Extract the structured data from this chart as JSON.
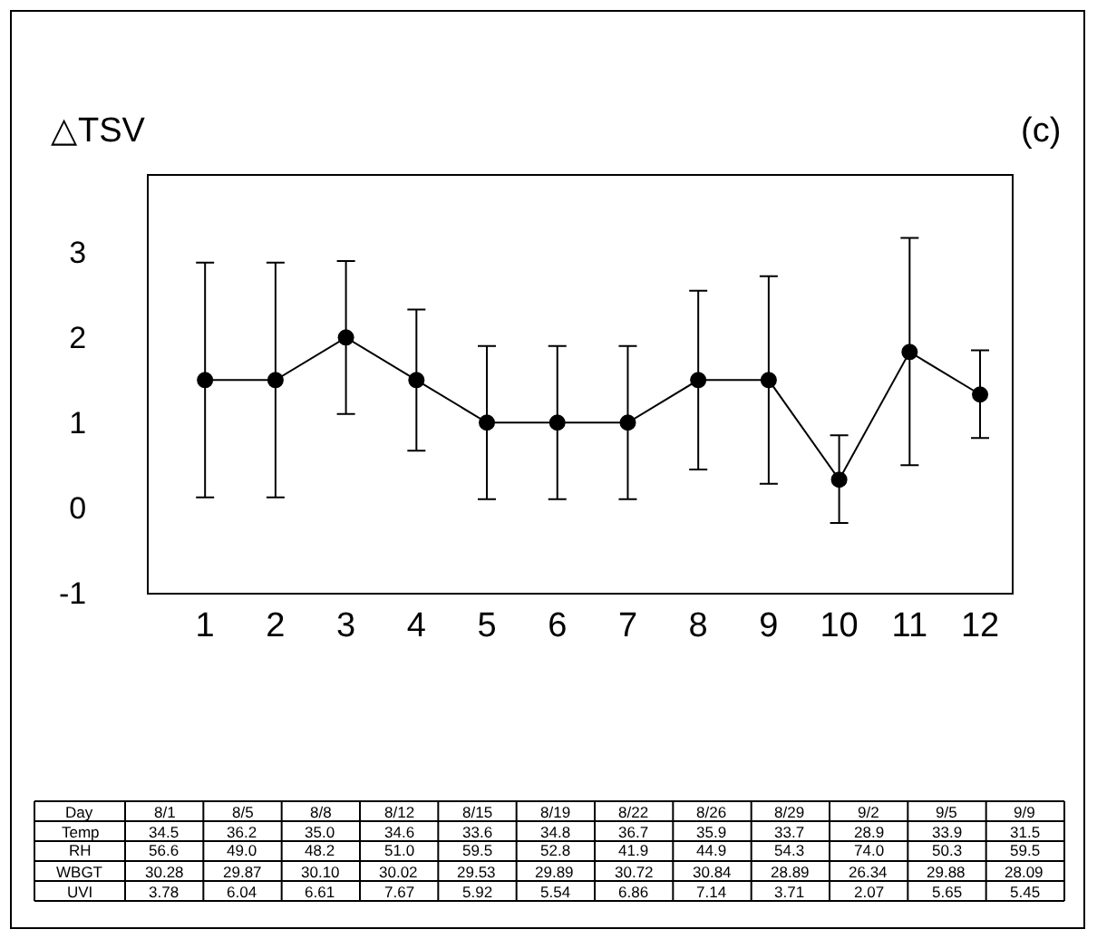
{
  "chart_data": {
    "type": "line",
    "ylabel": "△TSV",
    "x": [
      1,
      2,
      3,
      4,
      5,
      6,
      7,
      8,
      9,
      10,
      11,
      12
    ],
    "series": [
      {
        "color": "#000000",
        "values": [
          1.5,
          1.5,
          2.0,
          1.5,
          1.0,
          1.0,
          1.0,
          1.5,
          1.5,
          0.33,
          1.83,
          1.33
        ],
        "errors": [
          [
            0.12,
            2.88
          ],
          [
            0.12,
            2.88
          ],
          [
            1.1,
            2.9
          ],
          [
            0.67,
            2.33
          ],
          [
            0.1,
            1.9
          ],
          [
            0.1,
            1.9
          ],
          [
            0.1,
            1.9
          ],
          [
            0.45,
            2.55
          ],
          [
            0.28,
            2.72
          ],
          [
            -0.18,
            0.85
          ],
          [
            0.5,
            3.17
          ],
          [
            0.82,
            1.85
          ]
        ]
      }
    ],
    "xlim": [
      0.2,
      12.45
    ],
    "xticks": [
      1,
      2,
      3,
      4,
      5,
      6,
      7,
      8,
      9,
      10,
      11,
      12
    ],
    "ylim": [
      -1,
      3.9
    ],
    "yticks": [
      -1,
      0,
      1,
      2,
      3
    ],
    "marker": "circle",
    "line_style": "solid",
    "legend": false,
    "annotations": [
      "(c)",
      "Day",
      "8/1",
      "8/5",
      "8/8",
      "8/12",
      "8/15",
      "8/19",
      "8/22",
      "8/26",
      "8/29",
      "9/2",
      "9/5",
      "9/9",
      "Temp",
      "34.5",
      "36.2",
      "35.0",
      "34.6",
      "33.6",
      "34.8",
      "36.7",
      "35.9",
      "33.7",
      "28.9",
      "33.9",
      "31.5",
      "RH",
      "56.6",
      "49.0",
      "48.2",
      "51.0",
      "59.5",
      "52.8",
      "41.9",
      "44.9",
      "54.3",
      "74.0",
      "50.3",
      "59.5",
      "WBGT",
      "30.28",
      "29.87",
      "30.10",
      "30.02",
      "29.53",
      "29.89",
      "30.72",
      "30.84",
      "28.89",
      "26.34",
      "29.88",
      "28.09",
      "UVI",
      "3.78",
      "6.04",
      "6.61",
      "7.67",
      "5.92",
      "5.54",
      "6.86",
      "7.14",
      "3.71",
      "2.07",
      "5.65",
      "5.45"
    ]
  }
}
